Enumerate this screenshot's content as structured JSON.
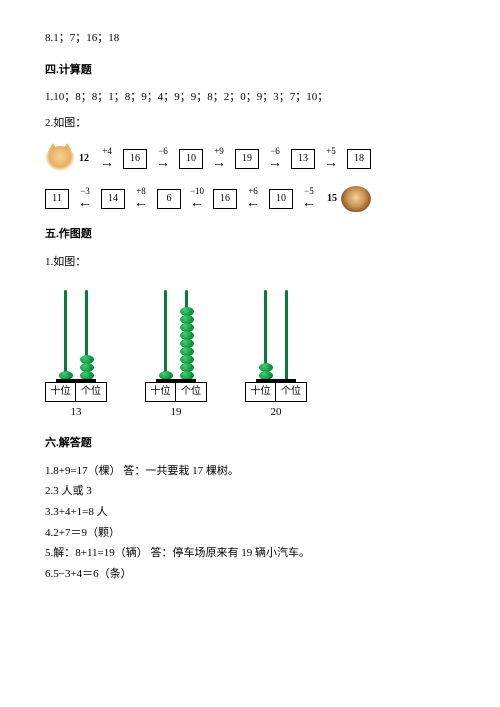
{
  "line8": "8.1；7；16；18",
  "section4": {
    "title": "四.计算题",
    "line1": "1.10；8；8；1；8；9；4；9；9；8；2；0；9；3；7；10；",
    "line2": "2.如图：",
    "flow1": {
      "start": "12",
      "steps": [
        {
          "op": "+4",
          "val": "16",
          "dir": "→"
        },
        {
          "op": "−6",
          "val": "10",
          "dir": "→"
        },
        {
          "op": "+9",
          "val": "19",
          "dir": "→"
        },
        {
          "op": "−6",
          "val": "13",
          "dir": "→"
        },
        {
          "op": "+5",
          "val": "18",
          "dir": "→"
        }
      ]
    },
    "flow2": {
      "start": "15",
      "steps": [
        {
          "op": "−5",
          "val": "10",
          "dir": "←"
        },
        {
          "op": "+6",
          "val": "16",
          "dir": "←"
        },
        {
          "op": "−10",
          "val": "6",
          "dir": "←"
        },
        {
          "op": "+8",
          "val": "14",
          "dir": "←"
        },
        {
          "op": "−3",
          "val": "11",
          "dir": "←"
        }
      ]
    }
  },
  "section5": {
    "title": "五.作图题",
    "line1": "1.如图：",
    "abacus": [
      {
        "tens": 1,
        "ones": 3,
        "label_t": "十位",
        "label_o": "个位",
        "num": "13"
      },
      {
        "tens": 1,
        "ones": 9,
        "label_t": "十位",
        "label_o": "个位",
        "num": "19"
      },
      {
        "tens": 2,
        "ones": 0,
        "label_t": "十位",
        "label_o": "个位",
        "num": "20"
      }
    ]
  },
  "section6": {
    "title": "六.解答题",
    "lines": [
      "1.8+9=17（棵）    答：一共要栽 17 棵树。",
      "2.3 人或 3",
      "3.3+4+1=8 人",
      "4.2+7＝9（颗）",
      "5.解：8+11=19（辆）    答：停车场原来有 19 辆小汽车。",
      "6.5−3+4＝6（条）"
    ]
  },
  "colors": {
    "bead_green": "#0a8a3a",
    "text": "#000000",
    "bg": "#ffffff"
  }
}
